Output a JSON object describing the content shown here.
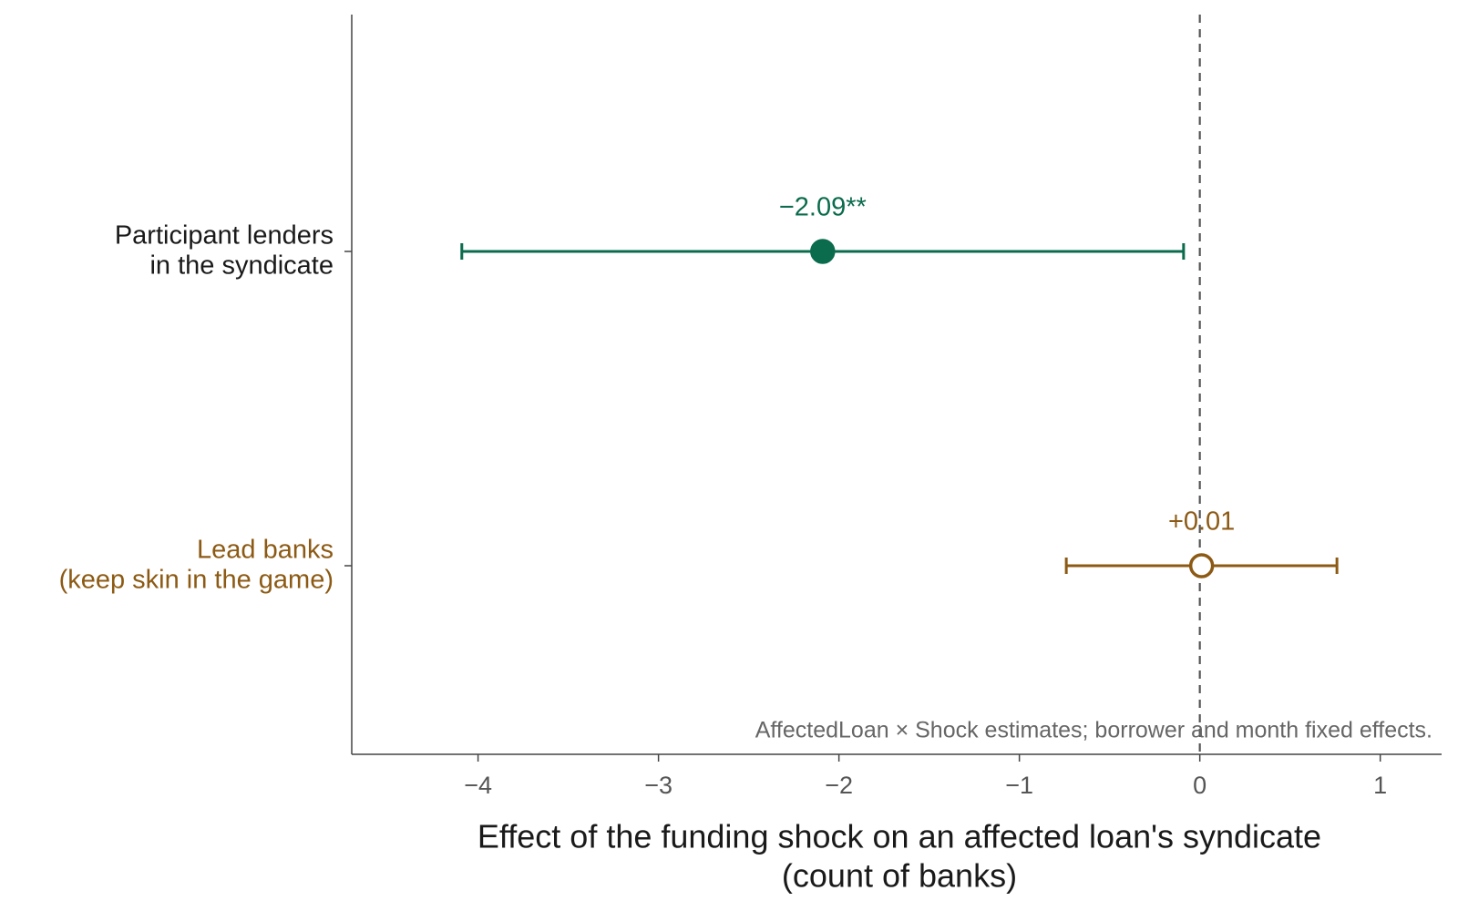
{
  "chart_data": {
    "type": "dot_errorbar",
    "categories": [
      "Participant lenders\nin the syndicate",
      "Lead banks\n(keep skin in the game)"
    ],
    "values": [
      -2.09,
      0.01
    ],
    "value_labels": [
      "−2.09**",
      "+0.01"
    ],
    "ci_low": [
      -4.09,
      -0.74
    ],
    "ci_high": [
      -0.09,
      0.76
    ],
    "colors": [
      "#0b6b4d",
      "#8c5a14"
    ],
    "label_colors": [
      "#1a1a1a",
      "#8c5a14"
    ],
    "hollow": [
      false,
      true
    ],
    "xlim": [
      -4.7,
      1.34
    ],
    "xticks": [
      {
        "value": -4,
        "label": "−4"
      },
      {
        "value": -3,
        "label": "−3"
      },
      {
        "value": -2,
        "label": "−2"
      },
      {
        "value": -1,
        "label": "−1"
      },
      0,
      1
    ],
    "reference_line": 0,
    "xlabel": "Effect of the funding shock on an affected loan's syndicate\n(count of banks)",
    "annotation": "AffectedLoan × Shock estimates; borrower and month fixed effects."
  }
}
